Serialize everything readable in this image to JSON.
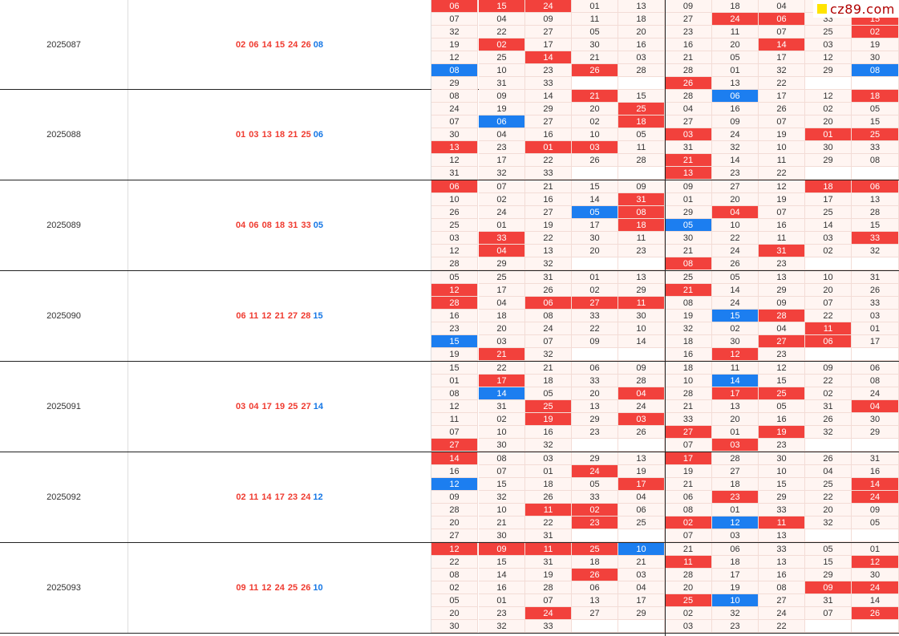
{
  "site_logo": "cz89.com",
  "colors": {
    "red": "#f2413c",
    "blue": "#1c7ef0",
    "cell_bg": "#fff5f2"
  },
  "periods": [
    {
      "id": "2025087",
      "red_numbers": "02 06 14 15 24 26",
      "blue_number": "08",
      "rows": [
        [
          "06",
          "15",
          "24",
          "01",
          "13",
          "09",
          "18",
          "04",
          "33",
          "15"
        ],
        [
          "07",
          "04",
          "09",
          "11",
          "18",
          "27",
          "24",
          "06",
          "33",
          "15"
        ],
        [
          "32",
          "22",
          "27",
          "05",
          "20",
          "23",
          "11",
          "07",
          "25",
          "02"
        ],
        [
          "19",
          "02",
          "17",
          "30",
          "16",
          "16",
          "20",
          "14",
          "03",
          "19"
        ],
        [
          "12",
          "25",
          "14",
          "21",
          "03",
          "21",
          "05",
          "17",
          "12",
          "30"
        ],
        [
          "08",
          "10",
          "23",
          "26",
          "28",
          "28",
          "01",
          "32",
          "29",
          "08"
        ],
        [
          "29",
          "31",
          "33",
          "",
          "",
          "26",
          "13",
          "22",
          "",
          ""
        ]
      ],
      "marks": [
        [
          "r",
          "r",
          "r",
          "",
          "",
          "",
          "",
          "",
          "",
          ""
        ],
        [
          "",
          "",
          "",
          "",
          "",
          "",
          "r",
          "r",
          "",
          "r"
        ],
        [
          "",
          "",
          "",
          "",
          "",
          "",
          "",
          "",
          "",
          "r"
        ],
        [
          "",
          "r",
          "",
          "",
          "",
          "",
          "",
          "r",
          "",
          ""
        ],
        [
          "",
          "",
          "r",
          "",
          "",
          "",
          "",
          "",
          "",
          ""
        ],
        [
          "b",
          "",
          "",
          "r",
          "",
          "",
          "",
          "",
          "",
          "b"
        ],
        [
          "",
          "",
          "",
          "",
          "",
          "r",
          "",
          "",
          "",
          ""
        ]
      ]
    },
    {
      "id": "2025088",
      "red_numbers": "01 03 13 18 21 25",
      "blue_number": "06",
      "rows": [
        [
          "08",
          "09",
          "14",
          "21",
          "15",
          "28",
          "06",
          "17",
          "12",
          "18"
        ],
        [
          "24",
          "19",
          "29",
          "20",
          "25",
          "04",
          "16",
          "26",
          "02",
          "05"
        ],
        [
          "07",
          "06",
          "27",
          "02",
          "18",
          "27",
          "09",
          "07",
          "20",
          "15"
        ],
        [
          "30",
          "04",
          "16",
          "10",
          "05",
          "03",
          "24",
          "19",
          "01",
          "25"
        ],
        [
          "13",
          "23",
          "01",
          "03",
          "11",
          "31",
          "32",
          "10",
          "30",
          "33"
        ],
        [
          "12",
          "17",
          "22",
          "26",
          "28",
          "21",
          "14",
          "11",
          "29",
          "08"
        ],
        [
          "31",
          "32",
          "33",
          "",
          "",
          "13",
          "23",
          "22",
          "",
          ""
        ]
      ],
      "marks": [
        [
          "",
          "",
          "",
          "r",
          "",
          "",
          "b",
          "",
          "",
          "r"
        ],
        [
          "",
          "",
          "",
          "",
          "r",
          "",
          "",
          "",
          "",
          ""
        ],
        [
          "",
          "b",
          "",
          "",
          "r",
          "",
          "",
          "",
          "",
          ""
        ],
        [
          "",
          "",
          "",
          "",
          "",
          "r",
          "",
          "",
          "r",
          "r"
        ],
        [
          "r",
          "",
          "r",
          "r",
          "",
          "",
          "",
          "",
          "",
          ""
        ],
        [
          "",
          "",
          "",
          "",
          "",
          "r",
          "",
          "",
          "",
          ""
        ],
        [
          "",
          "",
          "",
          "",
          "",
          "r",
          "",
          "",
          "",
          ""
        ]
      ]
    },
    {
      "id": "2025089",
      "red_numbers": "04 06 08 18 31 33",
      "blue_number": "05",
      "rows": [
        [
          "06",
          "07",
          "21",
          "15",
          "09",
          "09",
          "27",
          "12",
          "18",
          "06"
        ],
        [
          "10",
          "02",
          "16",
          "14",
          "31",
          "01",
          "20",
          "19",
          "17",
          "13"
        ],
        [
          "26",
          "24",
          "27",
          "05",
          "08",
          "29",
          "04",
          "07",
          "25",
          "28"
        ],
        [
          "25",
          "01",
          "19",
          "17",
          "18",
          "05",
          "10",
          "16",
          "14",
          "15"
        ],
        [
          "03",
          "33",
          "22",
          "30",
          "11",
          "30",
          "22",
          "11",
          "03",
          "33"
        ],
        [
          "12",
          "04",
          "13",
          "20",
          "23",
          "21",
          "24",
          "31",
          "02",
          "32"
        ],
        [
          "28",
          "29",
          "32",
          "",
          "",
          "08",
          "26",
          "23",
          "",
          ""
        ]
      ],
      "marks": [
        [
          "r",
          "",
          "",
          "",
          "",
          "",
          "",
          "",
          "r",
          "r"
        ],
        [
          "",
          "",
          "",
          "",
          "r",
          "",
          "",
          "",
          "",
          ""
        ],
        [
          "",
          "",
          "",
          "b",
          "r",
          "",
          "r",
          "",
          "",
          ""
        ],
        [
          "",
          "",
          "",
          "",
          "r",
          "b",
          "",
          "",
          "",
          ""
        ],
        [
          "",
          "r",
          "",
          "",
          "",
          "",
          "",
          "",
          "",
          "r"
        ],
        [
          "",
          "r",
          "",
          "",
          "",
          "",
          "",
          "r",
          "",
          ""
        ],
        [
          "",
          "",
          "",
          "",
          "",
          "r",
          "",
          "",
          "",
          ""
        ]
      ]
    },
    {
      "id": "2025090",
      "red_numbers": "06 11 12 21 27 28",
      "blue_number": "15",
      "rows": [
        [
          "05",
          "25",
          "31",
          "01",
          "13",
          "25",
          "05",
          "13",
          "10",
          "31"
        ],
        [
          "12",
          "17",
          "26",
          "02",
          "29",
          "21",
          "14",
          "29",
          "20",
          "26"
        ],
        [
          "28",
          "04",
          "06",
          "27",
          "11",
          "08",
          "24",
          "09",
          "07",
          "33"
        ],
        [
          "16",
          "18",
          "08",
          "33",
          "30",
          "19",
          "15",
          "28",
          "22",
          "03"
        ],
        [
          "23",
          "20",
          "24",
          "22",
          "10",
          "32",
          "02",
          "04",
          "11",
          "01"
        ],
        [
          "15",
          "03",
          "07",
          "09",
          "14",
          "18",
          "30",
          "27",
          "06",
          "17"
        ],
        [
          "19",
          "21",
          "32",
          "",
          "",
          "16",
          "12",
          "23",
          "",
          ""
        ]
      ],
      "marks": [
        [
          "",
          "",
          "",
          "",
          "",
          "",
          "",
          "",
          "",
          ""
        ],
        [
          "r",
          "",
          "",
          "",
          "",
          "r",
          "",
          "",
          "",
          ""
        ],
        [
          "r",
          "",
          "r",
          "r",
          "r",
          "",
          "",
          "",
          "",
          ""
        ],
        [
          "",
          "",
          "",
          "",
          "",
          "",
          "b",
          "r",
          "",
          ""
        ],
        [
          "",
          "",
          "",
          "",
          "",
          "",
          "",
          "",
          "r",
          ""
        ],
        [
          "b",
          "",
          "",
          "",
          "",
          "",
          "",
          "r",
          "r",
          ""
        ],
        [
          "",
          "r",
          "",
          "",
          "",
          "",
          "r",
          "",
          "",
          ""
        ]
      ]
    },
    {
      "id": "2025091",
      "red_numbers": "03 04 17 19 25 27",
      "blue_number": "14",
      "rows": [
        [
          "15",
          "22",
          "21",
          "06",
          "09",
          "18",
          "11",
          "12",
          "09",
          "06"
        ],
        [
          "01",
          "17",
          "18",
          "33",
          "28",
          "10",
          "14",
          "15",
          "22",
          "08"
        ],
        [
          "08",
          "14",
          "05",
          "20",
          "04",
          "28",
          "17",
          "25",
          "02",
          "24"
        ],
        [
          "12",
          "31",
          "25",
          "13",
          "24",
          "21",
          "13",
          "05",
          "31",
          "04"
        ],
        [
          "11",
          "02",
          "19",
          "29",
          "03",
          "33",
          "20",
          "16",
          "26",
          "30"
        ],
        [
          "07",
          "10",
          "16",
          "23",
          "26",
          "27",
          "01",
          "19",
          "32",
          "29"
        ],
        [
          "27",
          "30",
          "32",
          "",
          "",
          "07",
          "03",
          "23",
          "",
          ""
        ]
      ],
      "marks": [
        [
          "",
          "",
          "",
          "",
          "",
          "",
          "",
          "",
          "",
          ""
        ],
        [
          "",
          "r",
          "",
          "",
          "",
          "",
          "b",
          "",
          "",
          ""
        ],
        [
          "",
          "b",
          "",
          "",
          "r",
          "",
          "r",
          "r",
          "",
          ""
        ],
        [
          "",
          "",
          "r",
          "",
          "",
          "",
          "",
          "",
          "",
          "r"
        ],
        [
          "",
          "",
          "r",
          "",
          "r",
          "",
          "",
          "",
          "",
          ""
        ],
        [
          "",
          "",
          "",
          "",
          "",
          "r",
          "",
          "r",
          "",
          ""
        ],
        [
          "r",
          "",
          "",
          "",
          "",
          "",
          "r",
          "",
          "",
          ""
        ]
      ]
    },
    {
      "id": "2025092",
      "red_numbers": "02 11 14 17 23 24",
      "blue_number": "12",
      "rows": [
        [
          "14",
          "08",
          "03",
          "29",
          "13",
          "17",
          "28",
          "30",
          "26",
          "31"
        ],
        [
          "16",
          "07",
          "01",
          "24",
          "19",
          "19",
          "27",
          "10",
          "04",
          "16"
        ],
        [
          "12",
          "15",
          "18",
          "05",
          "17",
          "21",
          "18",
          "15",
          "25",
          "14"
        ],
        [
          "09",
          "32",
          "26",
          "33",
          "04",
          "06",
          "23",
          "29",
          "22",
          "24"
        ],
        [
          "28",
          "10",
          "11",
          "02",
          "06",
          "08",
          "01",
          "33",
          "20",
          "09"
        ],
        [
          "20",
          "21",
          "22",
          "23",
          "25",
          "02",
          "12",
          "11",
          "32",
          "05"
        ],
        [
          "27",
          "30",
          "31",
          "",
          "",
          "07",
          "03",
          "13",
          "",
          ""
        ]
      ],
      "marks": [
        [
          "r",
          "",
          "",
          "",
          "",
          "r",
          "",
          "",
          "",
          ""
        ],
        [
          "",
          "",
          "",
          "r",
          "",
          "",
          "",
          "",
          "",
          ""
        ],
        [
          "b",
          "",
          "",
          "",
          "r",
          "",
          "",
          "",
          "",
          "r"
        ],
        [
          "",
          "",
          "",
          "",
          "",
          "",
          "r",
          "",
          "",
          "r"
        ],
        [
          "",
          "",
          "r",
          "r",
          "",
          "",
          "",
          "",
          "",
          ""
        ],
        [
          "",
          "",
          "",
          "r",
          "",
          "r",
          "b",
          "r",
          "",
          ""
        ],
        [
          "",
          "",
          "",
          "",
          "",
          "",
          "",
          "",
          "",
          ""
        ]
      ]
    },
    {
      "id": "2025093",
      "red_numbers": "09 11 12 24 25 26",
      "blue_number": "10",
      "rows": [
        [
          "12",
          "09",
          "11",
          "25",
          "10",
          "21",
          "06",
          "33",
          "05",
          "01"
        ],
        [
          "22",
          "15",
          "31",
          "18",
          "21",
          "11",
          "18",
          "13",
          "15",
          "12"
        ],
        [
          "08",
          "14",
          "19",
          "26",
          "03",
          "28",
          "17",
          "16",
          "29",
          "30"
        ],
        [
          "02",
          "16",
          "28",
          "06",
          "04",
          "20",
          "19",
          "08",
          "09",
          "24"
        ],
        [
          "05",
          "01",
          "07",
          "13",
          "17",
          "25",
          "10",
          "27",
          "31",
          "14"
        ],
        [
          "20",
          "23",
          "24",
          "27",
          "29",
          "02",
          "32",
          "24",
          "07",
          "26"
        ],
        [
          "30",
          "32",
          "33",
          "",
          "",
          "03",
          "23",
          "22",
          "",
          ""
        ]
      ],
      "marks": [
        [
          "r",
          "r",
          "r",
          "r",
          "b",
          "",
          "",
          "",
          "",
          ""
        ],
        [
          "",
          "",
          "",
          "",
          "",
          "r",
          "",
          "",
          "",
          "r"
        ],
        [
          "",
          "",
          "",
          "r",
          "",
          "",
          "",
          "",
          "",
          ""
        ],
        [
          "",
          "",
          "",
          "",
          "",
          "",
          "",
          "",
          "r",
          "r"
        ],
        [
          "",
          "",
          "",
          "",
          "",
          "r",
          "b",
          "",
          "",
          ""
        ],
        [
          "",
          "",
          "r",
          "",
          "",
          "",
          "",
          "",
          "",
          "r"
        ],
        [
          "",
          "",
          "",
          "",
          "",
          "",
          "",
          "",
          "",
          ""
        ]
      ]
    }
  ]
}
